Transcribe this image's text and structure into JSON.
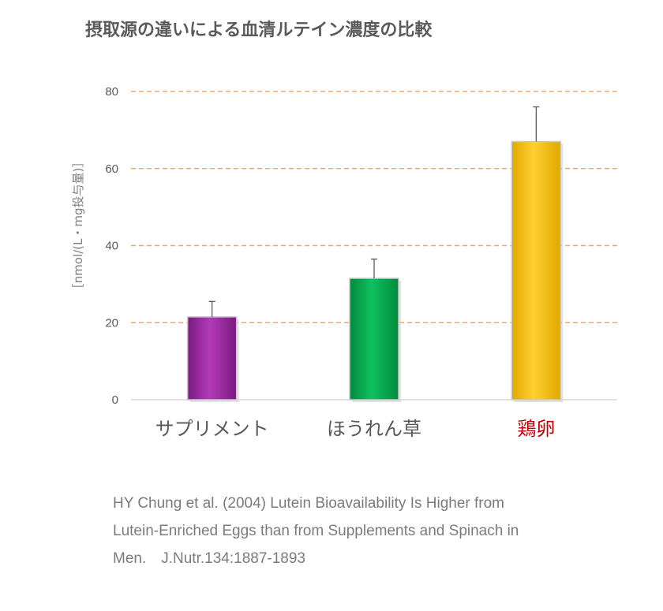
{
  "title": "摂取源の違いによる血清ルテイン濃度の比較",
  "colors": {
    "grid": "#f4a56a",
    "axis_text": "#595959",
    "category_text": "#595959",
    "highlight_text": "#c00000",
    "bars": [
      "#9b2aa0",
      "#00b050",
      "#ffc000"
    ]
  },
  "chart_data": {
    "type": "bar",
    "categories": [
      "サプリメント",
      "ほうれん草",
      "鶏卵"
    ],
    "values": [
      21.5,
      31.5,
      67
    ],
    "errors": [
      4,
      5,
      9
    ],
    "ylabel": "［nmol/(L・mg投与量)］",
    "xlabel": "",
    "ylim": [
      0,
      80
    ],
    "yticks": [
      0,
      20,
      40,
      60,
      80
    ],
    "grid": true,
    "highlight_category": "鶏卵"
  },
  "citation": {
    "line1": "HY Chung et al. (2004) Lutein Bioavailability Is Higher from",
    "line2": "Lutein-Enriched Eggs than from Supplements and Spinach in",
    "line3": "Men.　J.Nutr.134:1887-1893"
  }
}
